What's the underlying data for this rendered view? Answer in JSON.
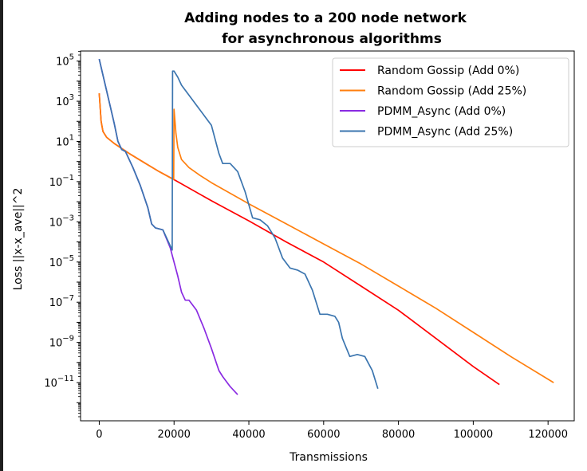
{
  "chart_data": {
    "type": "line",
    "title_lines": [
      "Adding nodes to a 200 node network",
      "for asynchronous algorithms"
    ],
    "xlabel": "Transmissions",
    "ylabel": "Loss ||x-x_ave||^2",
    "xlim": [
      -5000,
      127000
    ],
    "ylim_exp": [
      -12.9,
      5.5
    ],
    "yscale": "log",
    "x_ticks": [
      0,
      20000,
      40000,
      60000,
      80000,
      100000,
      120000
    ],
    "y_tick_exps": [
      5,
      3,
      1,
      -1,
      -3,
      -5,
      -7,
      -9,
      -11
    ],
    "legend_position": "top-right",
    "series": [
      {
        "name": "Random Gossip (Add 0%)",
        "color": "#ff0000",
        "x": [
          0,
          500,
          1000,
          2000,
          4000,
          8000,
          12000,
          16000,
          20000,
          30000,
          40000,
          50000,
          60000,
          70000,
          80000,
          90000,
          100000,
          107000
        ],
        "log10_y": [
          3.4,
          2.0,
          1.5,
          1.2,
          0.9,
          0.4,
          -0.05,
          -0.5,
          -0.9,
          -1.95,
          -2.95,
          -4.0,
          -5.0,
          -6.2,
          -7.4,
          -8.8,
          -10.2,
          -11.1
        ]
      },
      {
        "name": "Random Gossip (Add 25%)",
        "color": "#ff7f0e",
        "x": [
          0,
          500,
          1000,
          2000,
          4000,
          8000,
          12000,
          16000,
          19900,
          20000,
          20500,
          21000,
          22000,
          24000,
          27000,
          30000,
          40000,
          50000,
          60000,
          70000,
          80000,
          90000,
          100000,
          110000,
          121500
        ],
        "log10_y": [
          3.4,
          2.0,
          1.5,
          1.2,
          0.9,
          0.4,
          -0.05,
          -0.5,
          -0.9,
          2.6,
          1.4,
          0.7,
          0.1,
          -0.3,
          -0.7,
          -1.05,
          -2.1,
          -3.1,
          -4.1,
          -5.1,
          -6.2,
          -7.3,
          -8.5,
          -9.7,
          -11.0
        ]
      },
      {
        "name": "PDMM_Async (Add 0%)",
        "color": "#8a2be2",
        "x": [
          0,
          1000,
          2000,
          3000,
          4000,
          5000,
          6000,
          7000,
          9000,
          11000,
          13000,
          14000,
          15000,
          17000,
          19000,
          20000,
          21000,
          22000,
          23000,
          24000,
          26000,
          28000,
          30000,
          32000,
          33000,
          35000,
          37000
        ],
        "log10_y": [
          5.1,
          4.3,
          3.5,
          2.7,
          1.9,
          1.0,
          0.6,
          0.5,
          -0.3,
          -1.2,
          -2.3,
          -3.1,
          -3.3,
          -3.4,
          -4.3,
          -5.0,
          -5.7,
          -6.5,
          -6.9,
          -6.9,
          -7.4,
          -8.3,
          -9.3,
          -10.4,
          -10.7,
          -11.2,
          -11.6
        ]
      },
      {
        "name": "PDMM_Async (Add 25%)",
        "color": "#3b75af",
        "x": [
          0,
          1000,
          2000,
          3000,
          4000,
          5000,
          6000,
          7000,
          9000,
          11000,
          13000,
          14000,
          15000,
          17000,
          19500,
          19600,
          20000,
          21000,
          22000,
          24000,
          26000,
          28000,
          30000,
          32000,
          33000,
          35000,
          37000,
          39000,
          41000,
          43000,
          45000,
          47000,
          49000,
          51000,
          53000,
          55000,
          57000,
          59000,
          61000,
          63000,
          64000,
          65000,
          67000,
          69000,
          71000,
          73000,
          74500
        ],
        "log10_y": [
          5.1,
          4.3,
          3.5,
          2.7,
          1.9,
          1.0,
          0.6,
          0.5,
          -0.3,
          -1.2,
          -2.3,
          -3.1,
          -3.3,
          -3.4,
          -4.4,
          4.5,
          4.5,
          4.2,
          3.8,
          3.3,
          2.8,
          2.3,
          1.8,
          0.4,
          -0.1,
          -0.1,
          -0.5,
          -1.5,
          -2.8,
          -2.9,
          -3.2,
          -3.8,
          -4.8,
          -5.3,
          -5.4,
          -5.6,
          -6.4,
          -7.6,
          -7.6,
          -7.7,
          -8.0,
          -8.8,
          -9.7,
          -9.6,
          -9.7,
          -10.4,
          -11.3
        ]
      }
    ]
  }
}
